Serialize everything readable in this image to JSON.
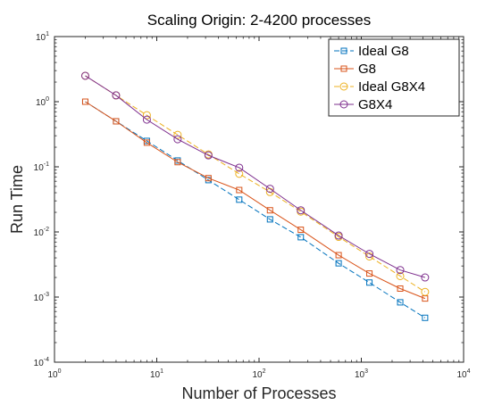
{
  "chart_data": {
    "type": "line",
    "title": "Scaling Origin: 2-4200 processes",
    "xlabel": "Number of Processes",
    "ylabel": "Run Time",
    "xscale": "log",
    "yscale": "log",
    "xlim": [
      1,
      10000
    ],
    "ylim": [
      0.0001,
      10
    ],
    "x_ticks": [
      {
        "base": "10",
        "exp": "0",
        "value": 1
      },
      {
        "base": "10",
        "exp": "1",
        "value": 10
      },
      {
        "base": "10",
        "exp": "2",
        "value": 100
      },
      {
        "base": "10",
        "exp": "3",
        "value": 1000
      },
      {
        "base": "10",
        "exp": "4",
        "value": 10000
      }
    ],
    "y_ticks": [
      {
        "base": "10",
        "exp": "-4",
        "value": 0.0001
      },
      {
        "base": "10",
        "exp": "-3",
        "value": 0.001
      },
      {
        "base": "10",
        "exp": "-2",
        "value": 0.01
      },
      {
        "base": "10",
        "exp": "-1",
        "value": 0.1
      },
      {
        "base": "10",
        "exp": "0",
        "value": 1
      },
      {
        "base": "10",
        "exp": "1",
        "value": 10
      }
    ],
    "grid": false,
    "legend_position": "top-right",
    "series": [
      {
        "name": "Ideal G8",
        "color": "#0072BD",
        "marker": "square",
        "dashed": true,
        "x": [
          2,
          4,
          8,
          16,
          32,
          64,
          128,
          256,
          600,
          1200,
          2400,
          4200
        ],
        "y": [
          1.0,
          0.5,
          0.25,
          0.125,
          0.0625,
          0.0313,
          0.0156,
          0.0083,
          0.0033,
          0.00167,
          0.00083,
          0.00048
        ]
      },
      {
        "name": "G8",
        "color": "#D95319",
        "marker": "square",
        "dashed": false,
        "x": [
          2,
          4,
          8,
          16,
          32,
          64,
          128,
          256,
          600,
          1200,
          2400,
          4200
        ],
        "y": [
          1.0,
          0.5,
          0.235,
          0.118,
          0.067,
          0.044,
          0.0215,
          0.0108,
          0.0044,
          0.0023,
          0.00135,
          0.00095
        ]
      },
      {
        "name": "Ideal G8X4",
        "color": "#EDB120",
        "marker": "circle",
        "dashed": true,
        "x": [
          2,
          4,
          8,
          16,
          32,
          64,
          128,
          256,
          600,
          1200,
          2400,
          4200
        ],
        "y": [
          2.5,
          1.25,
          0.62,
          0.31,
          0.155,
          0.078,
          0.041,
          0.0205,
          0.0084,
          0.0042,
          0.0021,
          0.0012
        ]
      },
      {
        "name": "G8X4",
        "color": "#7E2F8E",
        "marker": "circle",
        "dashed": false,
        "x": [
          2,
          4,
          8,
          16,
          32,
          64,
          128,
          256,
          600,
          1200,
          2400,
          4200
        ],
        "y": [
          2.5,
          1.25,
          0.53,
          0.265,
          0.15,
          0.097,
          0.046,
          0.0215,
          0.0088,
          0.0046,
          0.0026,
          0.002
        ]
      }
    ]
  }
}
